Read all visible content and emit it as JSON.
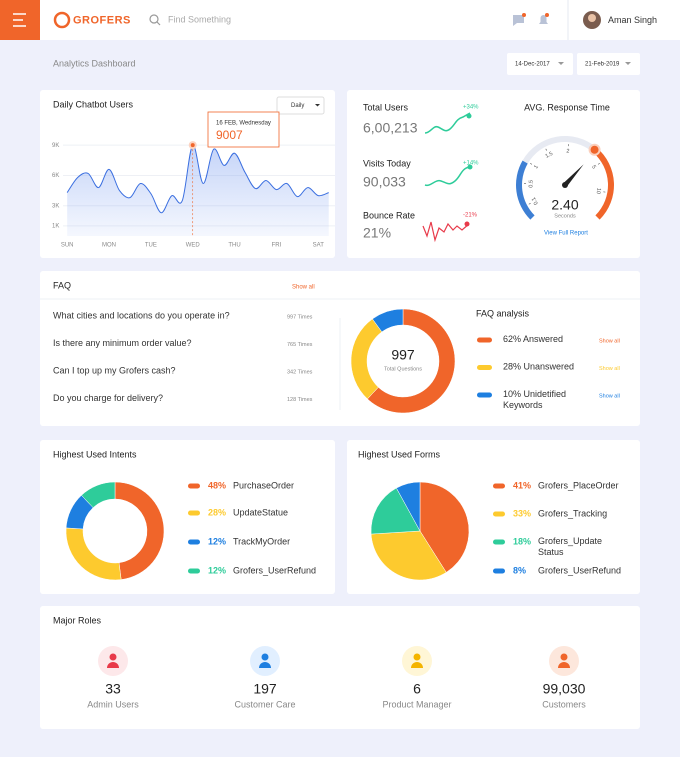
{
  "header": {
    "logo": "GROFERS",
    "search_placeholder": "Find Something",
    "user_name": "Aman Singh"
  },
  "toolbar": {
    "title": "Analytics Dashboard",
    "date_from": "14-Dec-2017",
    "date_to": "21-Feb-2019"
  },
  "chatbot": {
    "title": "Daily Chatbot Users",
    "period": "Daily",
    "tooltip_date": "16 FEB, Wednesday",
    "chart": {
      "type": "line",
      "color": "#3b6fe0",
      "x": [
        0,
        0.25,
        0.5,
        0.75,
        1,
        1.25,
        1.5,
        1.75,
        2,
        2.25,
        2.5,
        2.75,
        3,
        3.25,
        3.5,
        3.75,
        4,
        4.25,
        4.5,
        4.75,
        5,
        5.25,
        5.5,
        5.75,
        6,
        6.25
      ],
      "values": [
        4300,
        5800,
        6200,
        4800,
        6600,
        4500,
        3800,
        5200,
        4200,
        2300,
        4000,
        3500,
        9007,
        5200,
        8600,
        7000,
        8200,
        6300,
        4700,
        5500,
        4600,
        5200,
        3900,
        4800,
        4000,
        4300
      ],
      "xlim": [
        -0.1,
        6.4
      ],
      "xticks": [
        {
          "value": 0,
          "label": "SUN"
        },
        {
          "value": 1,
          "label": "MON"
        },
        {
          "value": 2,
          "label": "TUE"
        },
        {
          "value": 3,
          "label": "WED"
        },
        {
          "value": 4,
          "label": "THU"
        },
        {
          "value": 5,
          "label": "FRI"
        },
        {
          "value": 6,
          "label": "SAT"
        }
      ],
      "ylim": [
        0,
        11000
      ],
      "yticks": [
        {
          "value": 1000,
          "label": "1K"
        },
        {
          "value": 3000,
          "label": "3K"
        },
        {
          "value": 6000,
          "label": "6K"
        },
        {
          "value": 9000,
          "label": "9K"
        }
      ],
      "grid": true
    }
  },
  "stats": [
    {
      "label": "Total Users",
      "value": "6,00,213",
      "change": "+34%"
    },
    {
      "label": "Visits Today",
      "value": "90,033",
      "change": "+14%"
    },
    {
      "label": "Bounce Rate",
      "value": "21%",
      "change": "-21%"
    }
  ],
  "gauge": {
    "title": "AVG. Response Time",
    "ticks": [
      "0.1",
      "0.5",
      "1",
      "1.5",
      "2",
      "5",
      "10"
    ],
    "value": "2.40",
    "unit": "Seconds",
    "link": "View Full Report"
  },
  "faq": {
    "title": "FAQ",
    "show_all": "Show all",
    "questions": [
      {
        "text": "What cities and locations do you operate in?",
        "count": "997 Times"
      },
      {
        "text": "Is there any minimum order value?",
        "count": "765 Times"
      },
      {
        "text": "Can I top up my Grofers cash?",
        "count": "342 Times"
      },
      {
        "text": "Do you charge for delivery?",
        "count": "128 Times"
      }
    ],
    "total": "997",
    "total_label": "Total Questions",
    "analysis": {
      "title": "FAQ analysis",
      "type": "pie",
      "donut": true,
      "categories": [
        "Answered",
        "Unanswered",
        "Unidetified Keywords"
      ],
      "values": [
        62,
        28,
        10
      ],
      "value_labels": [
        "62%",
        "28%",
        "10%"
      ],
      "colors": [
        "#f0652a",
        "#fdca2e",
        "#1e7fe0"
      ]
    }
  },
  "intents": {
    "title": "Highest Used Intents",
    "chart": {
      "type": "pie",
      "donut": true,
      "categories": [
        "PurchaseOrder",
        "UpdateStatue",
        "TrackMyOrder",
        "Grofers_UserRefund"
      ],
      "values": [
        48,
        28,
        12,
        12
      ],
      "value_labels": [
        "48%",
        "28%",
        "12%",
        "12%"
      ],
      "colors": [
        "#f0652a",
        "#fdca2e",
        "#1e7fe0",
        "#2ecc9a"
      ]
    }
  },
  "forms": {
    "title": "Highest Used Forms",
    "chart": {
      "type": "pie",
      "donut": false,
      "categories": [
        "Grofers_PlaceOrder",
        "Grofers_Tracking",
        "Grofers_Update Status",
        "Grofers_UserRefund"
      ],
      "values": [
        41,
        33,
        18,
        8
      ],
      "value_labels": [
        "41%",
        "33%",
        "18%",
        "8%"
      ],
      "colors": [
        "#f0652a",
        "#fdca2e",
        "#2ecc9a",
        "#1e7fe0"
      ]
    }
  },
  "roles": {
    "title": "Major Roles",
    "items": [
      {
        "value": "33",
        "label": "Admin Users"
      },
      {
        "value": "197",
        "label": "Customer Care"
      },
      {
        "value": "6",
        "label": "Product Manager"
      },
      {
        "value": "99,030",
        "label": "Customers"
      }
    ]
  }
}
